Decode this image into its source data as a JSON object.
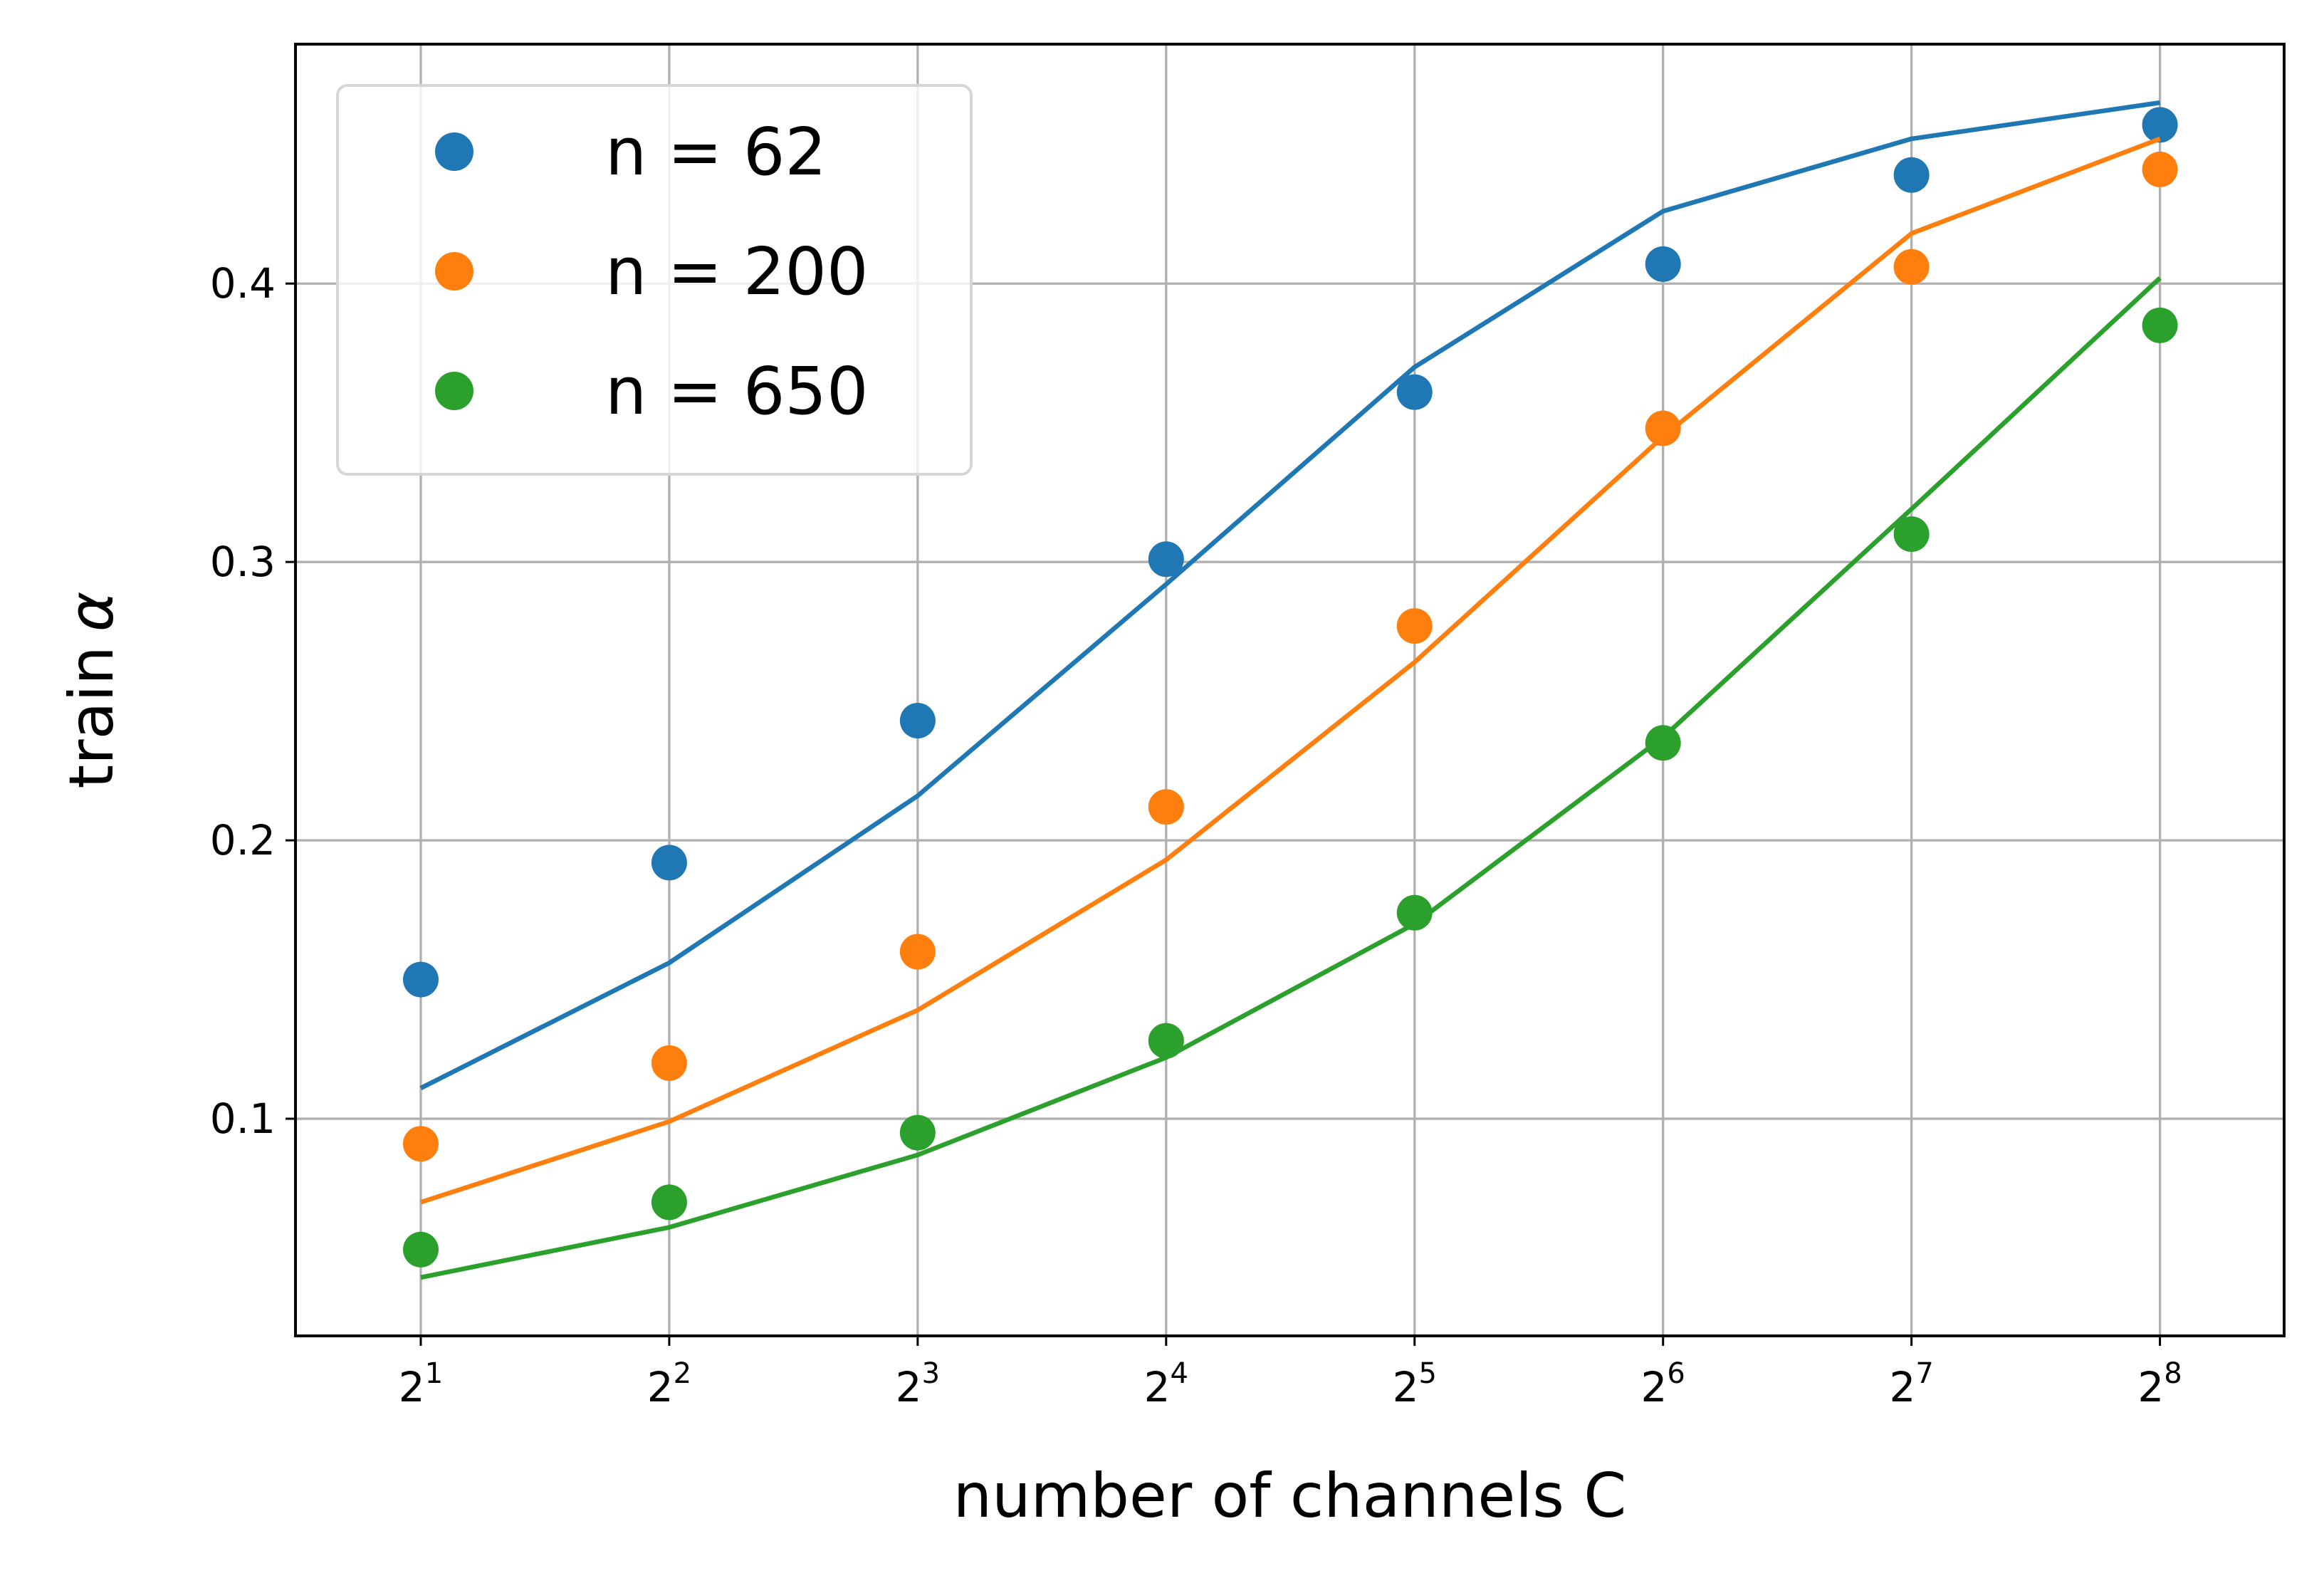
{
  "chart_data": {
    "type": "scatter",
    "title": "",
    "xlabel": "number of channels C",
    "ylabel_text": "train",
    "ylabel_symbol": "α",
    "x_scale": "log2",
    "x": [
      2,
      4,
      8,
      16,
      32,
      64,
      128,
      256
    ],
    "x_tick_base": "2",
    "x_tick_exponents": [
      "1",
      "2",
      "3",
      "4",
      "5",
      "6",
      "7",
      "8"
    ],
    "y_ticks": [
      0.1,
      0.2,
      0.3,
      0.4
    ],
    "y_tick_labels": [
      "0.1",
      "0.2",
      "0.3",
      "0.4"
    ],
    "xlim": [
      1.41,
      362
    ],
    "ylim": [
      0.022,
      0.486
    ],
    "grid": true,
    "legend_position": "top-left",
    "series": [
      {
        "name": "n = 62",
        "color": "#1f77b4",
        "points": [
          0.15,
          0.192,
          0.243,
          0.301,
          0.361,
          0.407,
          0.439,
          0.457
        ],
        "fit": [
          0.111,
          0.156,
          0.216,
          0.292,
          0.37,
          0.426,
          0.452,
          0.465
        ]
      },
      {
        "name": "n = 200",
        "color": "#ff7f0e",
        "points": [
          0.091,
          0.12,
          0.16,
          0.212,
          0.277,
          0.348,
          0.406,
          0.441
        ],
        "fit": [
          0.07,
          0.099,
          0.139,
          0.193,
          0.264,
          0.345,
          0.418,
          0.452
        ]
      },
      {
        "name": "n = 650",
        "color": "#2ca02c",
        "points": [
          0.053,
          0.07,
          0.095,
          0.128,
          0.174,
          0.235,
          0.31,
          0.385
        ],
        "fit": [
          0.043,
          0.061,
          0.087,
          0.122,
          0.17,
          0.237,
          0.319,
          0.402
        ]
      }
    ]
  }
}
